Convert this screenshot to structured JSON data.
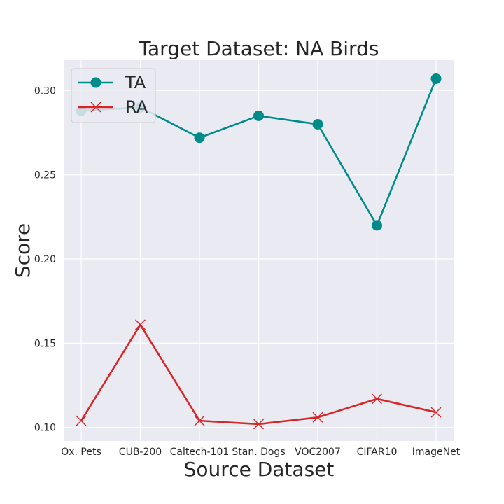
{
  "chart_data": {
    "type": "line",
    "title": "Target Dataset: NA Birds",
    "xlabel": "Source Dataset",
    "ylabel": "Score",
    "categories": [
      "Ox. Pets",
      "CUB-200",
      "Caltech-101",
      "Stan. Dogs",
      "VOC2007",
      "CIFAR10",
      "ImageNet"
    ],
    "ylim": [
      0.092,
      0.318
    ],
    "yticks": [
      0.1,
      0.15,
      0.2,
      0.25,
      0.3
    ],
    "ytick_labels": [
      "0.10",
      "0.15",
      "0.20",
      "0.25",
      "0.30"
    ],
    "grid": true,
    "legend_position": "top-left",
    "series": [
      {
        "name": "TA",
        "marker": "circle",
        "color": "#008b8b",
        "values": [
          0.288,
          0.29,
          0.272,
          0.285,
          0.28,
          0.22,
          0.307
        ]
      },
      {
        "name": "RA",
        "marker": "x",
        "color": "#d62728",
        "values": [
          0.104,
          0.161,
          0.104,
          0.102,
          0.106,
          0.117,
          0.109
        ]
      }
    ]
  }
}
